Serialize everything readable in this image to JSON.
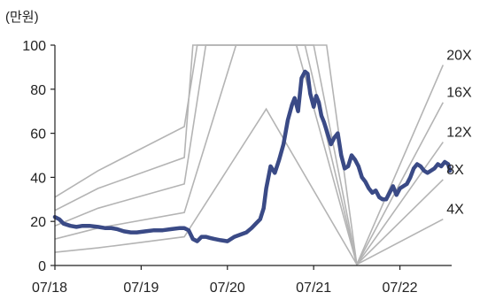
{
  "chart_data": {
    "type": "line",
    "unit_label": "(만원)",
    "ylim": [
      0,
      100
    ],
    "yticks": [
      0,
      20,
      40,
      60,
      80,
      100
    ],
    "xlim": [
      0,
      4.6
    ],
    "x_ticks": [
      {
        "x": 0,
        "label": "07/18"
      },
      {
        "x": 1,
        "label": "07/19"
      },
      {
        "x": 2,
        "label": "07/20"
      },
      {
        "x": 3,
        "label": "07/21"
      },
      {
        "x": 4,
        "label": "07/22"
      }
    ],
    "grid": false,
    "colors": {
      "price": "#3a4a86",
      "band": "#b4b4b4",
      "axis": "#222222"
    },
    "price_series": {
      "x": [
        0.0,
        0.05,
        0.1,
        0.18,
        0.25,
        0.32,
        0.4,
        0.5,
        0.58,
        0.65,
        0.72,
        0.8,
        0.88,
        0.95,
        1.05,
        1.15,
        1.25,
        1.35,
        1.45,
        1.5,
        1.55,
        1.6,
        1.65,
        1.7,
        1.75,
        1.8,
        1.85,
        1.92,
        2.0,
        2.08,
        2.15,
        2.22,
        2.28,
        2.33,
        2.38,
        2.42,
        2.45,
        2.5,
        2.55,
        2.6,
        2.65,
        2.7,
        2.75,
        2.78,
        2.82,
        2.86,
        2.9,
        2.93,
        2.96,
        3.0,
        3.03,
        3.06,
        3.09,
        3.12,
        3.16,
        3.2,
        3.24,
        3.28,
        3.32,
        3.36,
        3.4,
        3.44,
        3.48,
        3.52,
        3.56,
        3.6,
        3.64,
        3.68,
        3.72,
        3.76,
        3.8,
        3.84,
        3.88,
        3.92,
        3.96,
        4.0,
        4.04,
        4.08,
        4.12,
        4.16,
        4.2,
        4.24,
        4.28,
        4.32,
        4.36,
        4.4,
        4.44,
        4.48,
        4.52,
        4.56,
        4.58
      ],
      "y": [
        22,
        21,
        19,
        18,
        17.5,
        18,
        18,
        17.5,
        17,
        17,
        16.5,
        15.5,
        15,
        15,
        15.5,
        16,
        16,
        16.5,
        17,
        17,
        16,
        12,
        11,
        13,
        13,
        12.5,
        12,
        11.5,
        11,
        13,
        14,
        15,
        17,
        19,
        21,
        26,
        35,
        45,
        42,
        48,
        55,
        66,
        73,
        76,
        70,
        85,
        88,
        87,
        78,
        72,
        77,
        74,
        68,
        65,
        60,
        55,
        58,
        60,
        50,
        44,
        45,
        50,
        48,
        45,
        40,
        38,
        35,
        33,
        34,
        31,
        30,
        30,
        33,
        36,
        32,
        35,
        36,
        37,
        40,
        44,
        46,
        45,
        43,
        42,
        43,
        44,
        46,
        45,
        47,
        46,
        43
      ],
      "smooth_note": ""
    },
    "pbr_bands": [
      {
        "label": "20X",
        "points": [
          [
            0,
            31
          ],
          [
            0.5,
            43
          ],
          [
            1.5,
            63
          ],
          [
            1.65,
            100
          ],
          [
            2.8,
            100
          ],
          [
            3.5,
            0.5
          ],
          [
            4.5,
            91
          ]
        ]
      },
      {
        "label": "16X",
        "points": [
          [
            0,
            25
          ],
          [
            0.5,
            35
          ],
          [
            1.5,
            49
          ],
          [
            1.6,
            100
          ],
          [
            2.9,
            100
          ],
          [
            3.5,
            0.5
          ],
          [
            4.5,
            74
          ]
        ]
      },
      {
        "label": "12X",
        "points": [
          [
            0,
            18
          ],
          [
            0.5,
            26
          ],
          [
            1.5,
            37
          ],
          [
            1.75,
            100
          ],
          [
            3.0,
            100
          ],
          [
            3.5,
            0.5
          ],
          [
            4.5,
            56
          ]
        ]
      },
      {
        "label": "8X",
        "points": [
          [
            0,
            12
          ],
          [
            0.5,
            17
          ],
          [
            1.5,
            24
          ],
          [
            2.1,
            100
          ],
          [
            3.15,
            100
          ],
          [
            3.5,
            0.5
          ],
          [
            4.5,
            39
          ]
        ]
      },
      {
        "label": "4X",
        "points": [
          [
            0,
            6
          ],
          [
            0.5,
            8
          ],
          [
            1.5,
            13
          ],
          [
            2.45,
            71
          ],
          [
            3.5,
            0.5
          ],
          [
            4.5,
            21
          ]
        ]
      }
    ]
  }
}
